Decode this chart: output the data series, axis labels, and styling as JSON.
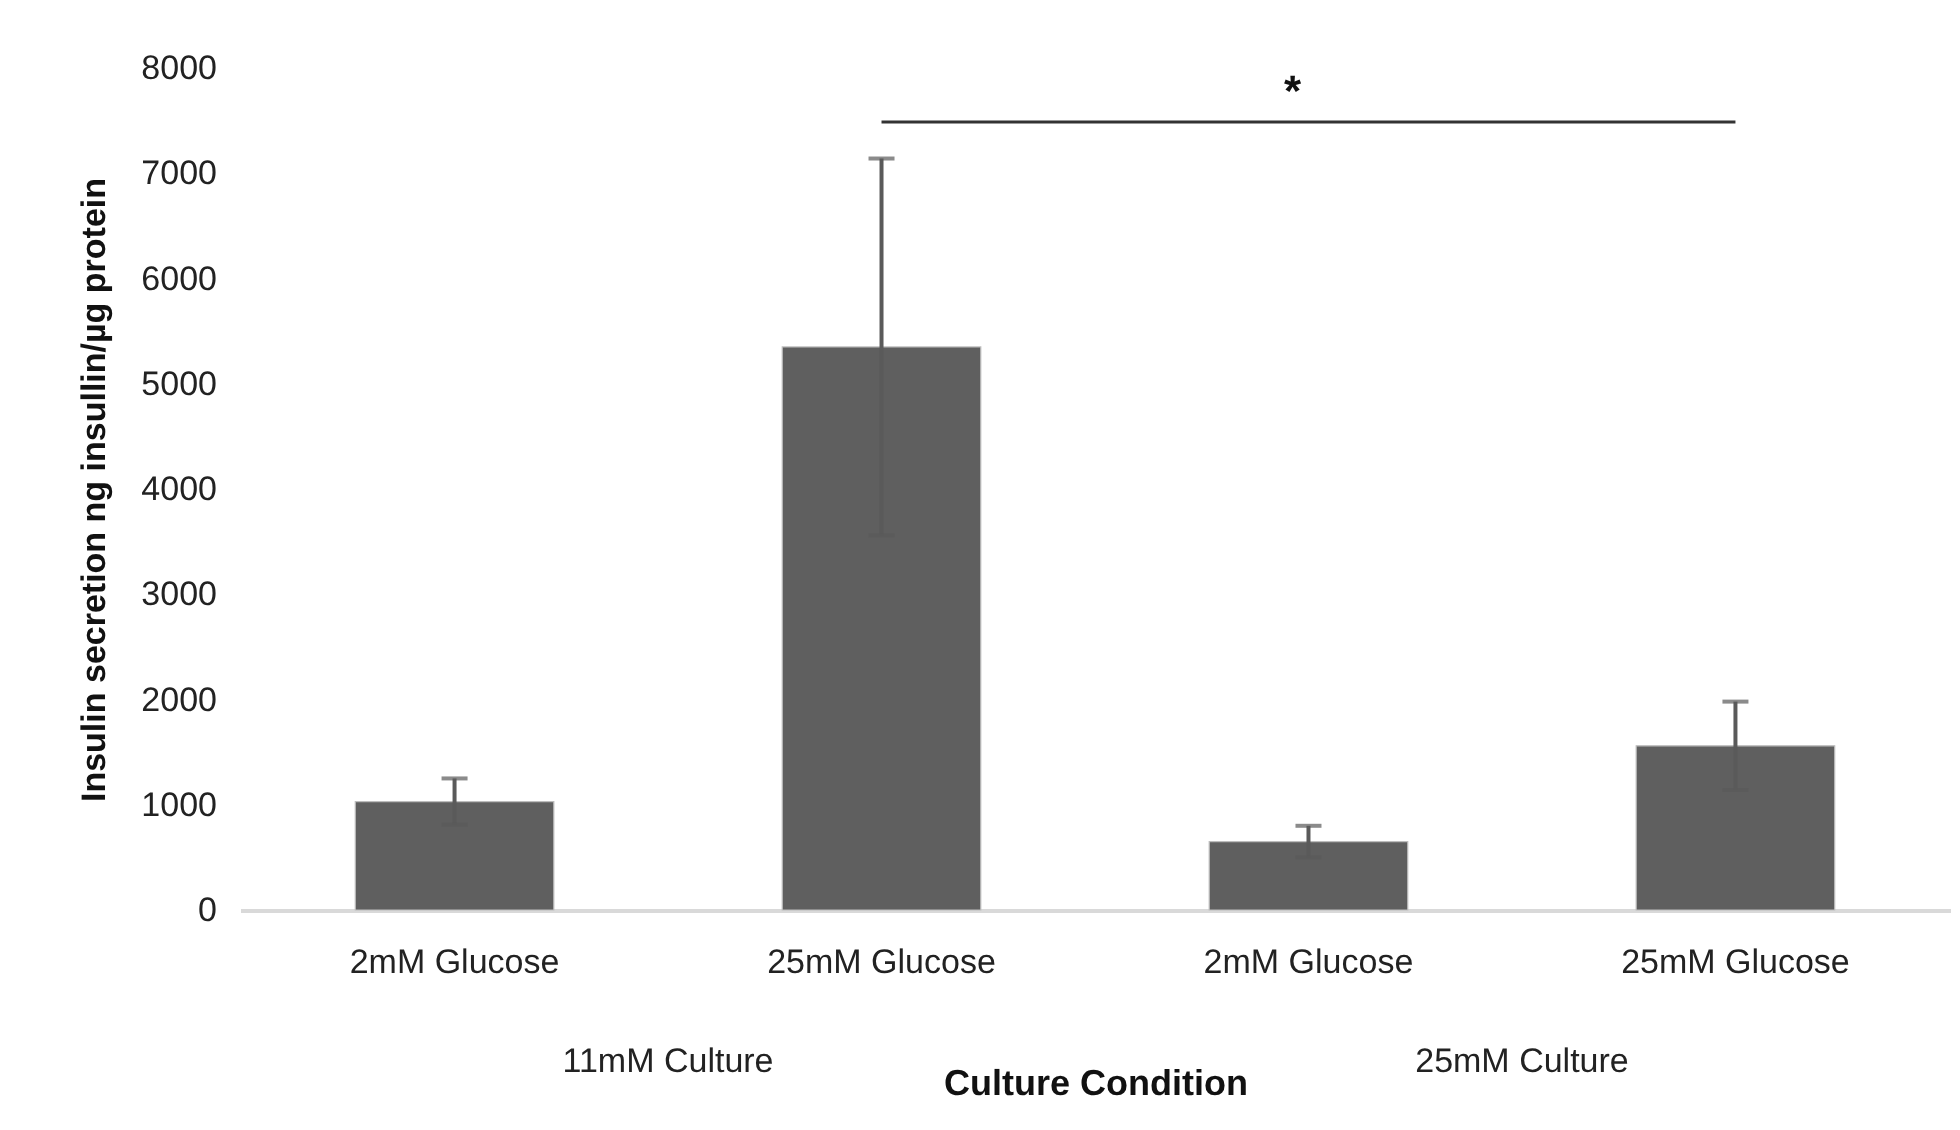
{
  "chart_data": {
    "type": "bar",
    "categories": [
      "2mM Glucose",
      "25mM Glucose",
      "2mM Glucose",
      "25mM Glucose"
    ],
    "values": [
      1030,
      5350,
      650,
      1560
    ],
    "errors": [
      220,
      1790,
      150,
      420
    ],
    "color": "#5f5f5f",
    "xlabel": "Culture Condition",
    "ylabel": "Insulin secretion ng insullin/µg protein",
    "ylim": [
      0,
      8000
    ],
    "yticks": [
      0,
      1000,
      2000,
      3000,
      4000,
      5000,
      6000,
      7000,
      8000
    ],
    "grid": false,
    "annotations": [
      "*",
      "11mM Culture",
      "25mM Culture"
    ]
  }
}
